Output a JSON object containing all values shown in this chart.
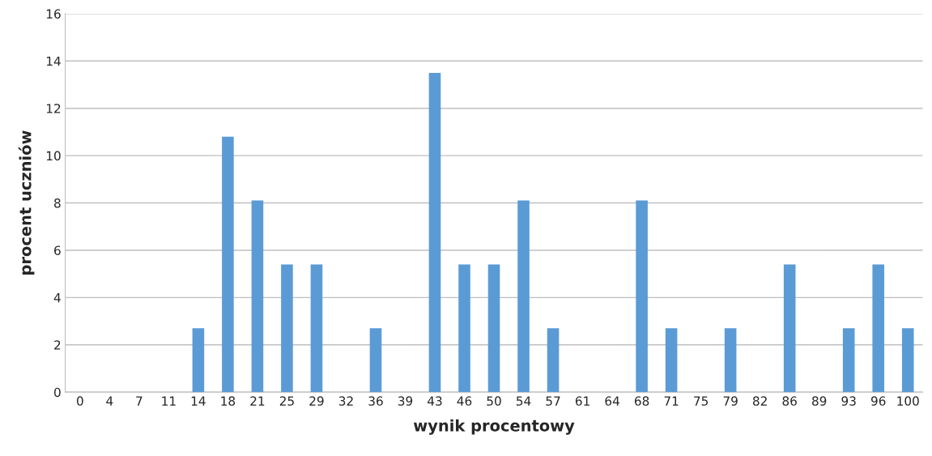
{
  "chart_data": {
    "type": "bar",
    "xlabel": "wynik procentowy",
    "ylabel": "procent uczniów",
    "categories": [
      "0",
      "4",
      "7",
      "11",
      "14",
      "18",
      "21",
      "25",
      "29",
      "32",
      "36",
      "39",
      "43",
      "46",
      "50",
      "54",
      "57",
      "61",
      "64",
      "68",
      "71",
      "75",
      "79",
      "82",
      "86",
      "89",
      "93",
      "96",
      "100"
    ],
    "values": [
      0,
      0,
      0,
      0,
      2.7,
      10.8,
      8.1,
      5.4,
      5.4,
      0,
      2.7,
      0,
      13.5,
      5.4,
      5.4,
      8.1,
      2.7,
      0,
      0,
      8.1,
      2.7,
      0,
      2.7,
      0,
      5.4,
      0,
      2.7,
      5.4,
      2.7
    ],
    "color": "#5b9bd5",
    "ylim": [
      0,
      16
    ],
    "yticks": [
      0,
      2,
      4,
      6,
      8,
      10,
      12,
      14,
      16
    ],
    "grid": "y"
  }
}
